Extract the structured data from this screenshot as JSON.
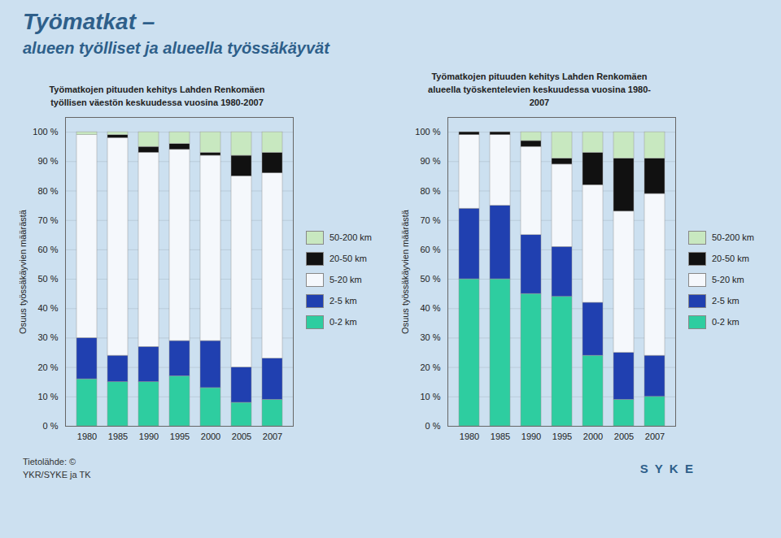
{
  "title": "Työmatkat –",
  "subtitle": "alueen työlliset ja alueella työssäkäyvät",
  "annotations": [
    "Tietolähde: ©\nYKR/SYKE ja TK",
    "S  Y  K  E"
  ],
  "chart_data": [
    {
      "type": "bar",
      "stacked": true,
      "title": "Työmatkojen pituuden kehitys Lahden Renkomäen\ntyöllisen väestön keskuudessa vuosina 1980-2007",
      "ylabel": "Osuus työssäkäyvien määrästä",
      "categories": [
        "1980",
        "1985",
        "1990",
        "1995",
        "2000",
        "2005",
        "2007"
      ],
      "series": [
        {
          "name": "0-2 km",
          "color": "#2ecda0",
          "values": [
            16,
            15,
            15,
            17,
            13,
            8,
            9
          ]
        },
        {
          "name": "2-5 km",
          "color": "#2040b0",
          "values": [
            14,
            9,
            12,
            12,
            16,
            12,
            14
          ]
        },
        {
          "name": "5-20 km",
          "color": "#f5f8fc",
          "values": [
            69,
            74,
            66,
            65,
            63,
            65,
            63
          ]
        },
        {
          "name": "20-50 km",
          "color": "#111111",
          "values": [
            0,
            1,
            2,
            2,
            1,
            7,
            7
          ]
        },
        {
          "name": "50-200 km",
          "color": "#c8e8c0",
          "values": [
            1,
            1,
            5,
            4,
            7,
            8,
            7
          ]
        }
      ],
      "ylim": [
        0,
        105
      ],
      "yticks": [
        {
          "value": 0,
          "label": "0 %"
        },
        {
          "value": 10,
          "label": "10 %"
        },
        {
          "value": 20,
          "label": "20 %"
        },
        {
          "value": 30,
          "label": "30 %"
        },
        {
          "value": 40,
          "label": "40 %"
        },
        {
          "value": 50,
          "label": "50 %"
        },
        {
          "value": 60,
          "label": "60 %"
        },
        {
          "value": 70,
          "label": "70 %"
        },
        {
          "value": 80,
          "label": "80 %"
        },
        {
          "value": 90,
          "label": "90 %"
        },
        {
          "value": 100,
          "label": "100 %"
        }
      ],
      "grid": true,
      "legend": "right"
    },
    {
      "type": "bar",
      "stacked": true,
      "title": "Työmatkojen pituuden kehitys Lahden Renkomäen\nalueella työskentelevien keskuudessa vuosina 1980-\n2007",
      "ylabel": "Osuus työssäkäyvien määrästä",
      "categories": [
        "1980",
        "1985",
        "1990",
        "1995",
        "2000",
        "2005",
        "2007"
      ],
      "series": [
        {
          "name": "0-2 km",
          "color": "#2ecda0",
          "values": [
            50,
            50,
            45,
            44,
            24,
            9,
            10
          ]
        },
        {
          "name": "2-5 km",
          "color": "#2040b0",
          "values": [
            24,
            25,
            20,
            17,
            18,
            16,
            14
          ]
        },
        {
          "name": "5-20 km",
          "color": "#f5f8fc",
          "values": [
            25,
            24,
            30,
            28,
            40,
            48,
            55
          ]
        },
        {
          "name": "20-50 km",
          "color": "#111111",
          "values": [
            1,
            1,
            2,
            2,
            11,
            18,
            12
          ]
        },
        {
          "name": "50-200 km",
          "color": "#c8e8c0",
          "values": [
            0,
            0,
            3,
            9,
            7,
            9,
            9
          ]
        }
      ],
      "ylim": [
        0,
        105
      ],
      "yticks": [
        {
          "value": 0,
          "label": "0 %"
        },
        {
          "value": 10,
          "label": "10 %"
        },
        {
          "value": 20,
          "label": "20 %"
        },
        {
          "value": 30,
          "label": "30 %"
        },
        {
          "value": 40,
          "label": "40 %"
        },
        {
          "value": 50,
          "label": "50 %"
        },
        {
          "value": 60,
          "label": "60 %"
        },
        {
          "value": 70,
          "label": "70 %"
        },
        {
          "value": 80,
          "label": "80 %"
        },
        {
          "value": 90,
          "label": "90 %"
        },
        {
          "value": 100,
          "label": "100 %"
        }
      ],
      "grid": true,
      "legend": "right"
    }
  ]
}
